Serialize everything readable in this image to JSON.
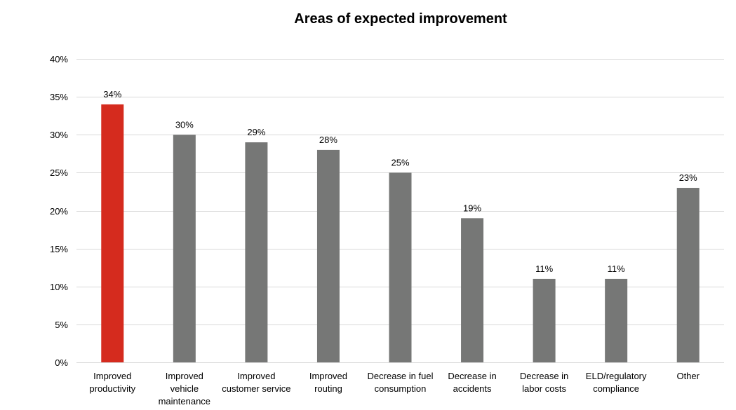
{
  "chart_data": {
    "type": "bar",
    "title": "Areas of expected improvement",
    "xlabel": "",
    "ylabel": "",
    "ylim": [
      0,
      40
    ],
    "y_ticks": [
      0,
      5,
      10,
      15,
      20,
      25,
      30,
      35,
      40
    ],
    "y_tick_labels": [
      "0%",
      "5%",
      "10%",
      "15%",
      "20%",
      "25%",
      "30%",
      "35%",
      "40%"
    ],
    "grid": true,
    "legend": "none",
    "categories": [
      [
        "Improved",
        "productivity"
      ],
      [
        "Improved",
        "vehicle",
        "maintenance"
      ],
      [
        "Improved",
        "customer service"
      ],
      [
        "Improved",
        "routing"
      ],
      [
        "Decrease in fuel",
        "consumption"
      ],
      [
        "Decrease in",
        "accidents"
      ],
      [
        "Decrease in",
        "labor costs"
      ],
      [
        "ELD/regulatory",
        "compliance"
      ],
      [
        "Other"
      ]
    ],
    "values": [
      34,
      30,
      29,
      28,
      25,
      19,
      11,
      11,
      23
    ],
    "data_labels": [
      "34%",
      "30%",
      "29%",
      "28%",
      "25%",
      "19%",
      "11%",
      "11%",
      "23%"
    ],
    "colors": {
      "highlight": "#d52b1e",
      "default": "#767776",
      "gridline": "#d9d9d9"
    },
    "highlight_index": 0
  }
}
